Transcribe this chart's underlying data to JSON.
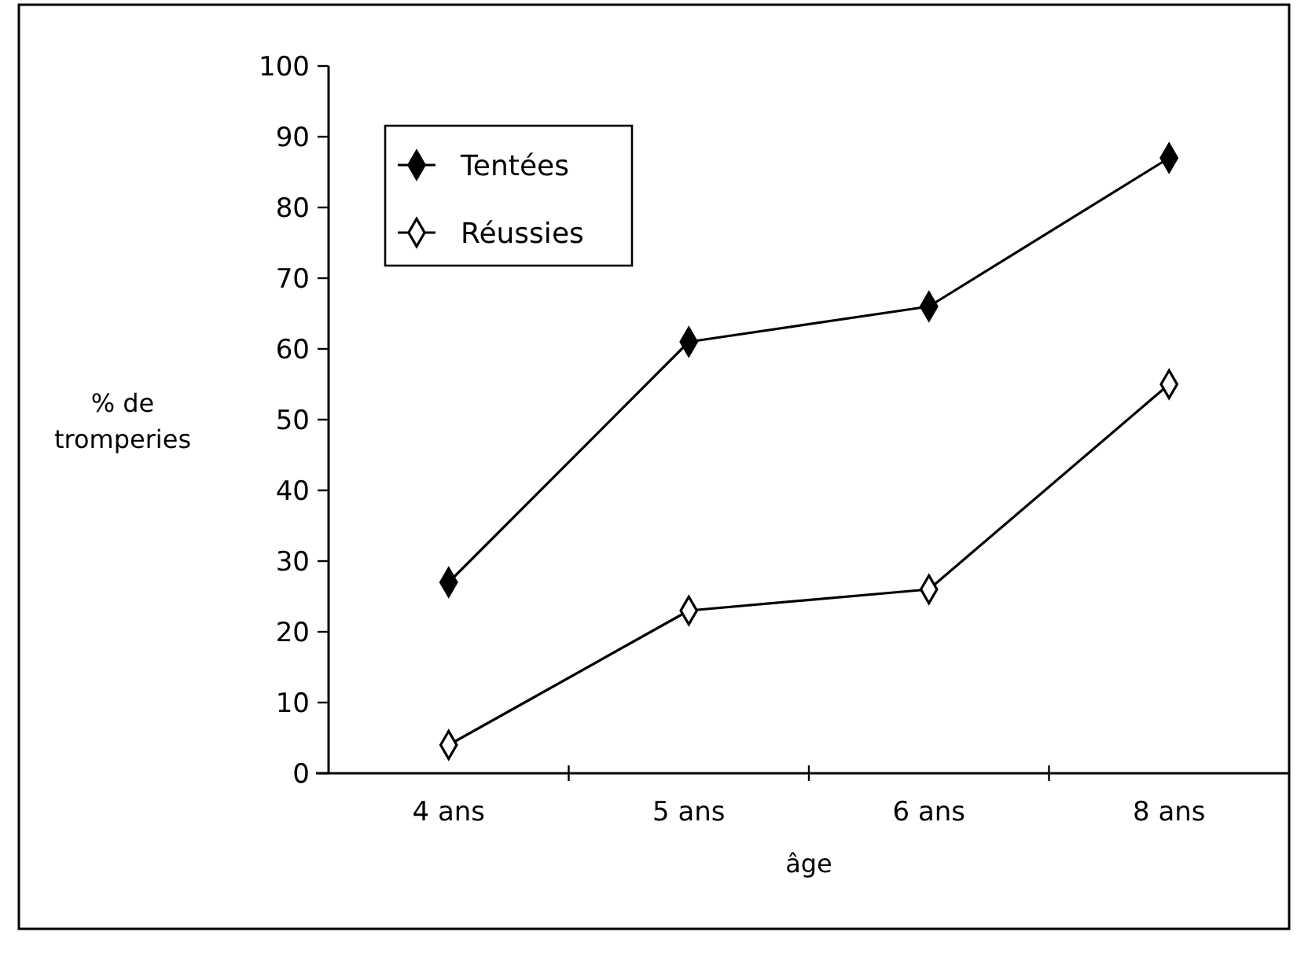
{
  "chart_data": {
    "type": "line",
    "categories": [
      "4 ans",
      "5 ans",
      "6 ans",
      "8 ans"
    ],
    "xlabel": "âge",
    "ylabel": "% de tromperies",
    "ylim": [
      0,
      100
    ],
    "yticks": [
      0,
      10,
      20,
      30,
      40,
      50,
      60,
      70,
      80,
      90,
      100
    ],
    "grid": false,
    "legend": "top left",
    "marker": "diamond",
    "line_style": "solid",
    "series": [
      {
        "name": "Tentées",
        "color": "#000000",
        "values": [
          27,
          61,
          66,
          87
        ]
      },
      {
        "name": "Réussies",
        "color": "#000000",
        "values": [
          4,
          23,
          26,
          55
        ]
      }
    ]
  }
}
